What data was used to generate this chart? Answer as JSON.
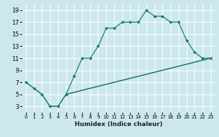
{
  "xlabel": "Humidex (Indice chaleur)",
  "bg_color": "#cce8ee",
  "grid_color": "#ffffff",
  "line_color": "#1a7a6e",
  "xlim": [
    -0.5,
    23.5
  ],
  "ylim": [
    2,
    20
  ],
  "xticks": [
    0,
    1,
    2,
    3,
    4,
    5,
    6,
    7,
    8,
    9,
    10,
    11,
    12,
    13,
    14,
    15,
    16,
    17,
    18,
    19,
    20,
    21,
    22,
    23
  ],
  "yticks": [
    3,
    5,
    7,
    9,
    11,
    13,
    15,
    17,
    19
  ],
  "line1_x": [
    0,
    1,
    2,
    3,
    4,
    5,
    6,
    7,
    8,
    9,
    10,
    11,
    12,
    13,
    14,
    15,
    16,
    17,
    18,
    19,
    20,
    21,
    22,
    23
  ],
  "line1_y": [
    7,
    6,
    5,
    3,
    3,
    5,
    8,
    11,
    11,
    13,
    16,
    16,
    17,
    17,
    17,
    19,
    18,
    18,
    17,
    17,
    14,
    12,
    11,
    11
  ],
  "line2_x": [
    0,
    1,
    2,
    3,
    4,
    5,
    23
  ],
  "line2_y": [
    7,
    6,
    5,
    3,
    3,
    5,
    11
  ],
  "line3_x": [
    5,
    23
  ],
  "line3_y": [
    5,
    11
  ]
}
